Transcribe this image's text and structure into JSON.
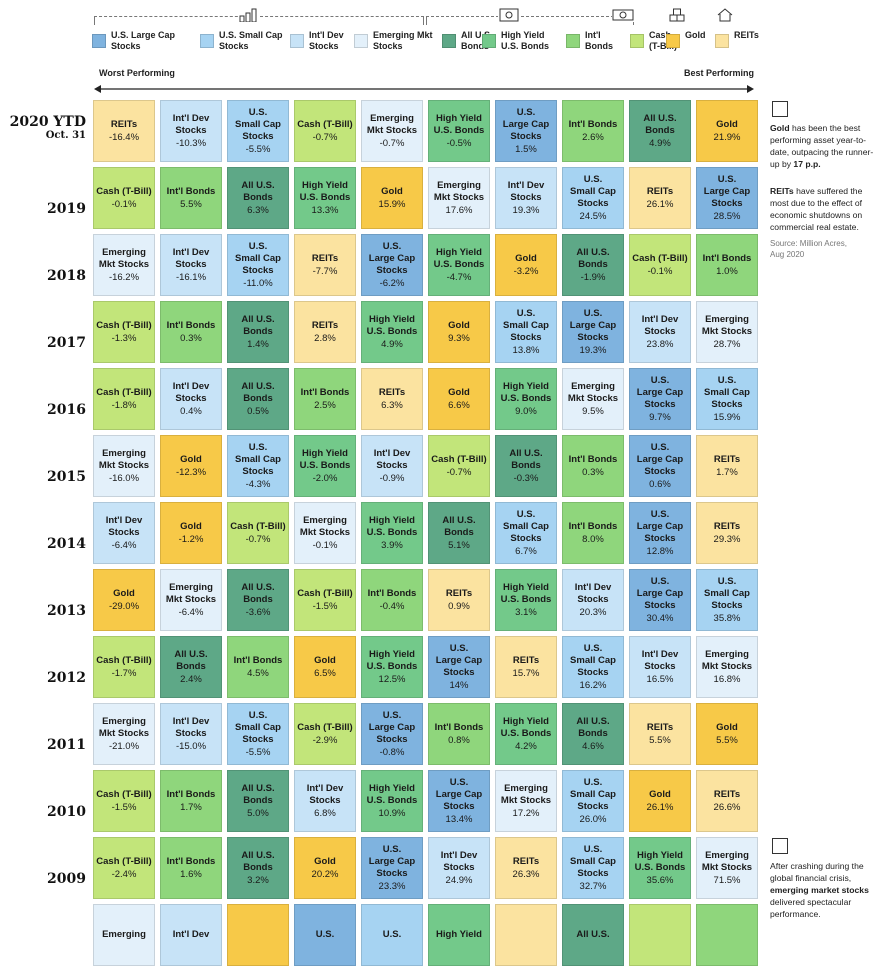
{
  "legend": [
    {
      "key": "uslc",
      "label": "U.S. Large Cap\nStocks",
      "color": "#7fb3df"
    },
    {
      "key": "ussc",
      "label": "U.S. Small Cap\nStocks",
      "color": "#a6d3f2"
    },
    {
      "key": "intldev",
      "label": "Int'l Dev\nStocks",
      "color": "#c7e3f7"
    },
    {
      "key": "em",
      "label": "Emerging Mkt\nStocks",
      "color": "#e3f0fa"
    },
    {
      "key": "allbonds",
      "label": "All U.S.\nBonds",
      "color": "#5ea887"
    },
    {
      "key": "hy",
      "label": "High Yield\nU.S. Bonds",
      "color": "#73c98a"
    },
    {
      "key": "intlbonds",
      "label": "Int'l\nBonds",
      "color": "#8fd67c"
    },
    {
      "key": "cash",
      "label": "Cash\n(T-Bill)",
      "color": "#c2e57a"
    },
    {
      "key": "gold",
      "label": "Gold",
      "color": "#f7c948"
    },
    {
      "key": "reits",
      "label": "REITs",
      "color": "#fbe3a0"
    }
  ],
  "axis": {
    "worst": "Worst Performing",
    "best": "Best Performing"
  },
  "chart_data": {
    "type": "table",
    "rows": [
      {
        "year": "2020 YTD",
        "sub": "Oct. 31",
        "cells": [
          [
            "reits",
            "REITs",
            "-16.4%"
          ],
          [
            "intldev",
            "Int'l Dev\nStocks",
            "-10.3%"
          ],
          [
            "ussc",
            "U.S.\nSmall Cap\nStocks",
            "-5.5%"
          ],
          [
            "cash",
            "Cash (T-Bill)",
            "-0.7%"
          ],
          [
            "em",
            "Emerging\nMkt Stocks",
            "-0.7%"
          ],
          [
            "hy",
            "High Yield\nU.S. Bonds",
            "-0.5%"
          ],
          [
            "uslc",
            "U.S.\nLarge Cap\nStocks",
            "1.5%"
          ],
          [
            "intlbonds",
            "Int'l Bonds",
            "2.6%"
          ],
          [
            "allbonds",
            "All U.S.\nBonds",
            "4.9%"
          ],
          [
            "gold",
            "Gold",
            "21.9%"
          ]
        ]
      },
      {
        "year": "2019",
        "sub": "",
        "cells": [
          [
            "cash",
            "Cash (T-Bill)",
            "-0.1%"
          ],
          [
            "intlbonds",
            "Int'l Bonds",
            "5.5%"
          ],
          [
            "allbonds",
            "All U.S.\nBonds",
            "6.3%"
          ],
          [
            "hy",
            "High Yield\nU.S. Bonds",
            "13.3%"
          ],
          [
            "gold",
            "Gold",
            "15.9%"
          ],
          [
            "em",
            "Emerging\nMkt Stocks",
            "17.6%"
          ],
          [
            "intldev",
            "Int'l Dev\nStocks",
            "19.3%"
          ],
          [
            "ussc",
            "U.S.\nSmall Cap\nStocks",
            "24.5%"
          ],
          [
            "reits",
            "REITs",
            "26.1%"
          ],
          [
            "uslc",
            "U.S.\nLarge Cap\nStocks",
            "28.5%"
          ]
        ]
      },
      {
        "year": "2018",
        "sub": "",
        "cells": [
          [
            "em",
            "Emerging\nMkt Stocks",
            "-16.2%"
          ],
          [
            "intldev",
            "Int'l Dev\nStocks",
            "-16.1%"
          ],
          [
            "ussc",
            "U.S.\nSmall Cap\nStocks",
            "-11.0%"
          ],
          [
            "reits",
            "REITs",
            "-7.7%"
          ],
          [
            "uslc",
            "U.S.\nLarge Cap\nStocks",
            "-6.2%"
          ],
          [
            "hy",
            "High Yield\nU.S. Bonds",
            "-4.7%"
          ],
          [
            "gold",
            "Gold",
            "-3.2%"
          ],
          [
            "allbonds",
            "All U.S.\nBonds",
            "-1.9%"
          ],
          [
            "cash",
            "Cash (T-Bill)",
            "-0.1%"
          ],
          [
            "intlbonds",
            "Int'l Bonds",
            "1.0%"
          ]
        ]
      },
      {
        "year": "2017",
        "sub": "",
        "cells": [
          [
            "cash",
            "Cash (T-Bill)",
            "-1.3%"
          ],
          [
            "intlbonds",
            "Int'l Bonds",
            "0.3%"
          ],
          [
            "allbonds",
            "All U.S.\nBonds",
            "1.4%"
          ],
          [
            "reits",
            "REITs",
            "2.8%"
          ],
          [
            "hy",
            "High Yield\nU.S. Bonds",
            "4.9%"
          ],
          [
            "gold",
            "Gold",
            "9.3%"
          ],
          [
            "ussc",
            "U.S.\nSmall Cap\nStocks",
            "13.8%"
          ],
          [
            "uslc",
            "U.S.\nLarge Cap\nStocks",
            "19.3%"
          ],
          [
            "intldev",
            "Int'l Dev\nStocks",
            "23.8%"
          ],
          [
            "em",
            "Emerging\nMkt Stocks",
            "28.7%"
          ]
        ]
      },
      {
        "year": "2016",
        "sub": "",
        "cells": [
          [
            "cash",
            "Cash (T-Bill)",
            "-1.8%"
          ],
          [
            "intldev",
            "Int'l Dev\nStocks",
            "0.4%"
          ],
          [
            "allbonds",
            "All U.S.\nBonds",
            "0.5%"
          ],
          [
            "intlbonds",
            "Int'l Bonds",
            "2.5%"
          ],
          [
            "reits",
            "REITs",
            "6.3%"
          ],
          [
            "gold",
            "Gold",
            "6.6%"
          ],
          [
            "hy",
            "High Yield\nU.S. Bonds",
            "9.0%"
          ],
          [
            "em",
            "Emerging\nMkt Stocks",
            "9.5%"
          ],
          [
            "uslc",
            "U.S.\nLarge Cap\nStocks",
            "9.7%"
          ],
          [
            "ussc",
            "U.S.\nSmall Cap\nStocks",
            "15.9%"
          ]
        ]
      },
      {
        "year": "2015",
        "sub": "",
        "cells": [
          [
            "em",
            "Emerging\nMkt Stocks",
            "-16.0%"
          ],
          [
            "gold",
            "Gold",
            "-12.3%"
          ],
          [
            "ussc",
            "U.S.\nSmall Cap\nStocks",
            "-4.3%"
          ],
          [
            "hy",
            "High Yield\nU.S. Bonds",
            "-2.0%"
          ],
          [
            "intldev",
            "Int'l Dev\nStocks",
            "-0.9%"
          ],
          [
            "cash",
            "Cash (T-Bill)",
            "-0.7%"
          ],
          [
            "allbonds",
            "All U.S.\nBonds",
            "-0.3%"
          ],
          [
            "intlbonds",
            "Int'l Bonds",
            "0.3%"
          ],
          [
            "uslc",
            "U.S.\nLarge Cap\nStocks",
            "0.6%"
          ],
          [
            "reits",
            "REITs",
            "1.7%"
          ]
        ]
      },
      {
        "year": "2014",
        "sub": "",
        "cells": [
          [
            "intldev",
            "Int'l Dev\nStocks",
            "-6.4%"
          ],
          [
            "gold",
            "Gold",
            "-1.2%"
          ],
          [
            "cash",
            "Cash (T-Bill)",
            "-0.7%"
          ],
          [
            "em",
            "Emerging\nMkt Stocks",
            "-0.1%"
          ],
          [
            "hy",
            "High Yield\nU.S. Bonds",
            "3.9%"
          ],
          [
            "allbonds",
            "All U.S.\nBonds",
            "5.1%"
          ],
          [
            "ussc",
            "U.S.\nSmall Cap\nStocks",
            "6.7%"
          ],
          [
            "intlbonds",
            "Int'l Bonds",
            "8.0%"
          ],
          [
            "uslc",
            "U.S.\nLarge Cap\nStocks",
            "12.8%"
          ],
          [
            "reits",
            "REITs",
            "29.3%"
          ]
        ]
      },
      {
        "year": "2013",
        "sub": "",
        "cells": [
          [
            "gold",
            "Gold",
            "-29.0%"
          ],
          [
            "em",
            "Emerging\nMkt Stocks",
            "-6.4%"
          ],
          [
            "allbonds",
            "All U.S.\nBonds",
            "-3.6%"
          ],
          [
            "cash",
            "Cash (T-Bill)",
            "-1.5%"
          ],
          [
            "intlbonds",
            "Int'l Bonds",
            "-0.4%"
          ],
          [
            "reits",
            "REITs",
            "0.9%"
          ],
          [
            "hy",
            "High Yield\nU.S. Bonds",
            "3.1%"
          ],
          [
            "intldev",
            "Int'l Dev\nStocks",
            "20.3%"
          ],
          [
            "uslc",
            "U.S.\nLarge Cap\nStocks",
            "30.4%"
          ],
          [
            "ussc",
            "U.S.\nSmall Cap\nStocks",
            "35.8%"
          ]
        ]
      },
      {
        "year": "2012",
        "sub": "",
        "cells": [
          [
            "cash",
            "Cash (T-Bill)",
            "-1.7%"
          ],
          [
            "allbonds",
            "All U.S.\nBonds",
            "2.4%"
          ],
          [
            "intlbonds",
            "Int'l Bonds",
            "4.5%"
          ],
          [
            "gold",
            "Gold",
            "6.5%"
          ],
          [
            "hy",
            "High Yield\nU.S. Bonds",
            "12.5%"
          ],
          [
            "uslc",
            "U.S.\nLarge Cap\nStocks",
            "14%"
          ],
          [
            "reits",
            "REITs",
            "15.7%"
          ],
          [
            "ussc",
            "U.S.\nSmall Cap\nStocks",
            "16.2%"
          ],
          [
            "intldev",
            "Int'l Dev\nStocks",
            "16.5%"
          ],
          [
            "em",
            "Emerging\nMkt Stocks",
            "16.8%"
          ]
        ]
      },
      {
        "year": "2011",
        "sub": "",
        "cells": [
          [
            "em",
            "Emerging\nMkt Stocks",
            "-21.0%"
          ],
          [
            "intldev",
            "Int'l Dev\nStocks",
            "-15.0%"
          ],
          [
            "ussc",
            "U.S.\nSmall Cap\nStocks",
            "-5.5%"
          ],
          [
            "cash",
            "Cash (T-Bill)",
            "-2.9%"
          ],
          [
            "uslc",
            "U.S.\nLarge Cap\nStocks",
            "-0.8%"
          ],
          [
            "intlbonds",
            "Int'l Bonds",
            "0.8%"
          ],
          [
            "hy",
            "High Yield\nU.S. Bonds",
            "4.2%"
          ],
          [
            "allbonds",
            "All U.S.\nBonds",
            "4.6%"
          ],
          [
            "reits",
            "REITs",
            "5.5%"
          ],
          [
            "gold",
            "Gold",
            "5.5%"
          ]
        ]
      },
      {
        "year": "2010",
        "sub": "",
        "cells": [
          [
            "cash",
            "Cash (T-Bill)",
            "-1.5%"
          ],
          [
            "intlbonds",
            "Int'l Bonds",
            "1.7%"
          ],
          [
            "allbonds",
            "All U.S.\nBonds",
            "5.0%"
          ],
          [
            "intldev",
            "Int'l Dev\nStocks",
            "6.8%"
          ],
          [
            "hy",
            "High Yield\nU.S. Bonds",
            "10.9%"
          ],
          [
            "uslc",
            "U.S.\nLarge Cap\nStocks",
            "13.4%"
          ],
          [
            "em",
            "Emerging\nMkt Stocks",
            "17.2%"
          ],
          [
            "ussc",
            "U.S.\nSmall Cap\nStocks",
            "26.0%"
          ],
          [
            "gold",
            "Gold",
            "26.1%"
          ],
          [
            "reits",
            "REITs",
            "26.6%"
          ]
        ]
      },
      {
        "year": "2009",
        "sub": "",
        "cells": [
          [
            "cash",
            "Cash (T-Bill)",
            "-2.4%"
          ],
          [
            "intlbonds",
            "Int'l Bonds",
            "1.6%"
          ],
          [
            "allbonds",
            "All U.S.\nBonds",
            "3.2%"
          ],
          [
            "gold",
            "Gold",
            "20.2%"
          ],
          [
            "uslc",
            "U.S.\nLarge Cap\nStocks",
            "23.3%"
          ],
          [
            "intldev",
            "Int'l Dev\nStocks",
            "24.9%"
          ],
          [
            "reits",
            "REITs",
            "26.3%"
          ],
          [
            "ussc",
            "U.S.\nSmall Cap\nStocks",
            "32.7%"
          ],
          [
            "hy",
            "High Yield\nU.S. Bonds",
            "35.6%"
          ],
          [
            "em",
            "Emerging\nMkt Stocks",
            "71.5%"
          ]
        ]
      },
      {
        "year": "",
        "sub": "",
        "cells": [
          [
            "em",
            "Emerging",
            ""
          ],
          [
            "intldev",
            "Int'l Dev",
            ""
          ],
          [
            "gold",
            "",
            ""
          ],
          [
            "uslc",
            "U.S.",
            ""
          ],
          [
            "ussc",
            "U.S.",
            ""
          ],
          [
            "hy",
            "High Yield",
            ""
          ],
          [
            "reits",
            "",
            ""
          ],
          [
            "allbonds",
            "All U.S.",
            ""
          ],
          [
            "cash",
            "",
            ""
          ],
          [
            "intlbonds",
            "",
            ""
          ]
        ]
      }
    ]
  },
  "notes": {
    "gold_bold": "Gold",
    "gold_text": " has been the best performing asset year-to-date, outpacing the runner-up by ",
    "gold_bold2": "17 p.p.",
    "reits_bold": "REITs",
    "reits_text": " have suffered the most due to the effect of economic shutdowns on commercial real estate.",
    "source": "Source: Million Acres,\nAug 2020",
    "em_text": "After crashing during the global financial crisis, ",
    "em_bold": "emerging market stocks",
    "em_text2": " delivered spectacular performance."
  }
}
